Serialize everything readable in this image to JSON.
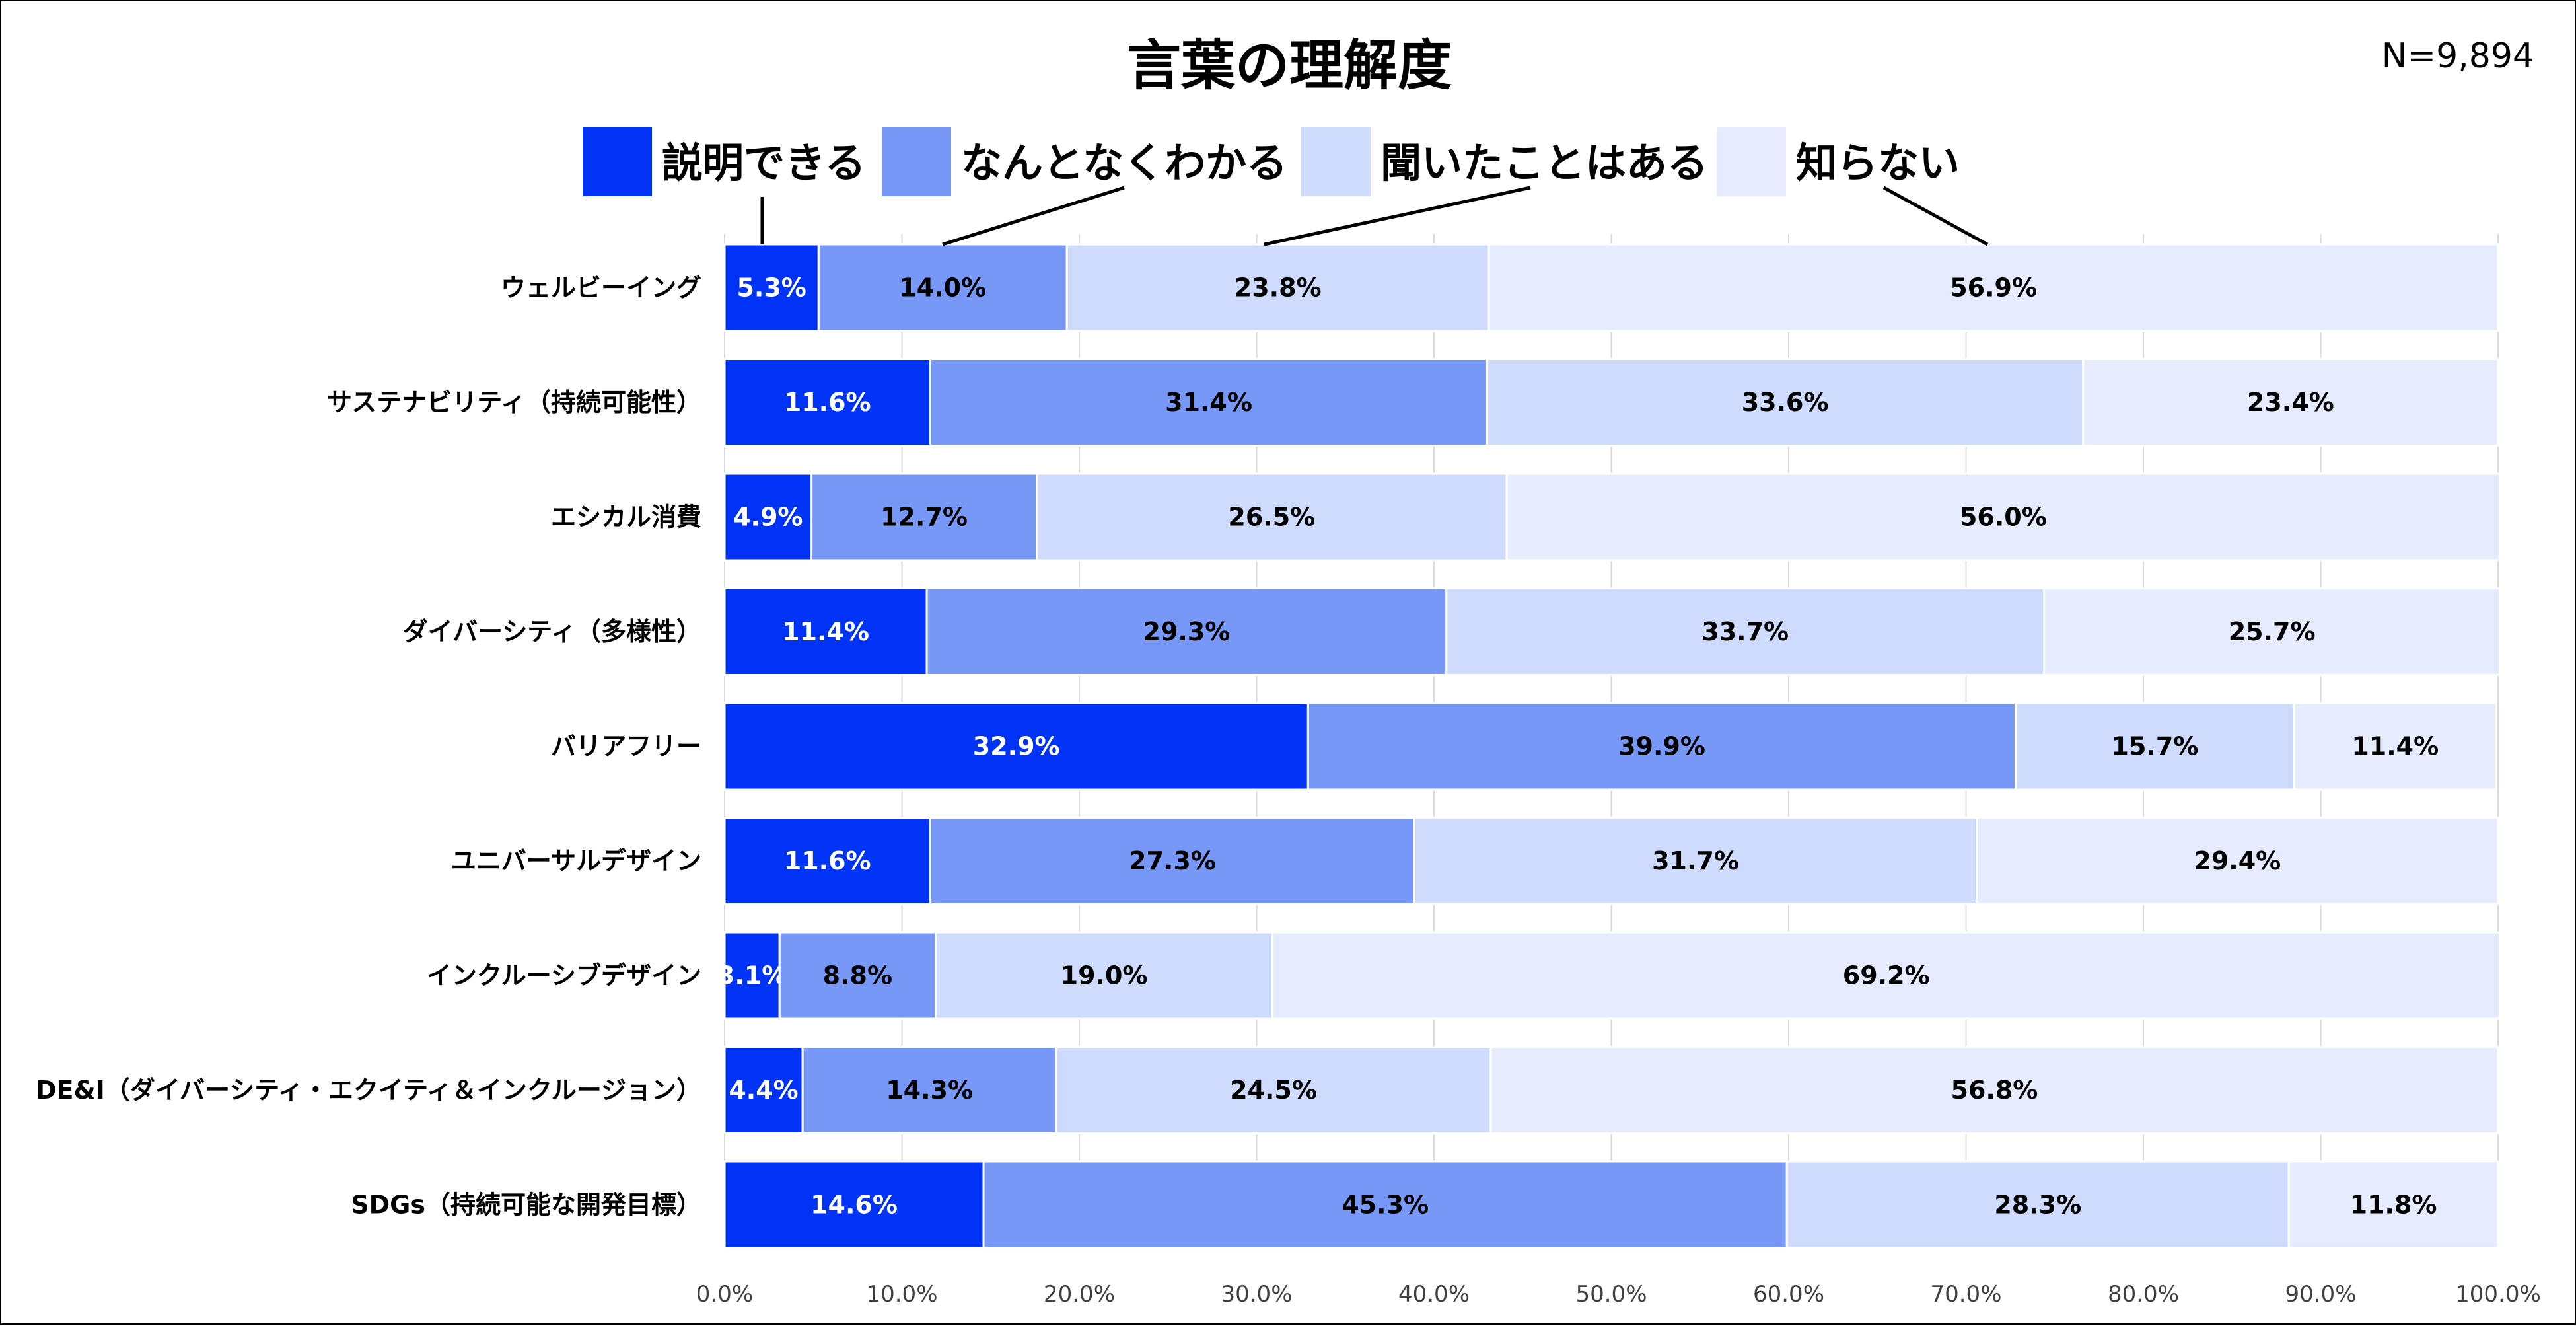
{
  "chart_data": {
    "type": "bar",
    "orientation": "horizontal",
    "stacked": true,
    "title": "言葉の理解度",
    "note": "N=9,894",
    "categories": [
      "ウェルビーイング",
      "サステナビリティ（持続可能性）",
      "エシカル消費",
      "ダイバーシティ（多様性）",
      "バリアフリー",
      "ユニバーサルデザイン",
      "インクルーシブデザイン",
      "DE&I（ダイバーシティ・エクイティ＆インクルージョン）",
      "SDGs（持続可能な開発目標）"
    ],
    "series": [
      {
        "name": "説明できる",
        "color": "#0033f5",
        "label_color": "#ffffff",
        "values": [
          5.3,
          11.6,
          4.9,
          11.4,
          32.9,
          11.6,
          3.1,
          4.4,
          14.6
        ]
      },
      {
        "name": "なんとなくわかる",
        "color": "#7898f8",
        "label_color": "#000000",
        "values": [
          14.0,
          31.4,
          12.7,
          29.3,
          39.9,
          27.3,
          8.8,
          14.3,
          45.3
        ]
      },
      {
        "name": "聞いたことはある",
        "color": "#cfdbfc",
        "label_color": "#000000",
        "values": [
          23.8,
          33.6,
          26.5,
          33.7,
          15.7,
          31.7,
          19.0,
          24.5,
          28.3
        ]
      },
      {
        "name": "知らない",
        "color": "#e6ecfd",
        "label_color": "#000000",
        "values": [
          56.9,
          23.4,
          56.0,
          25.7,
          11.4,
          29.4,
          69.2,
          56.8,
          11.8
        ]
      }
    ],
    "xlim": [
      0,
      100
    ],
    "xticks": [
      "0.0%",
      "10.0%",
      "20.0%",
      "30.0%",
      "40.0%",
      "50.0%",
      "60.0%",
      "70.0%",
      "80.0%",
      "90.0%",
      "100.0%"
    ],
    "grid": true,
    "legend_position": "top"
  }
}
